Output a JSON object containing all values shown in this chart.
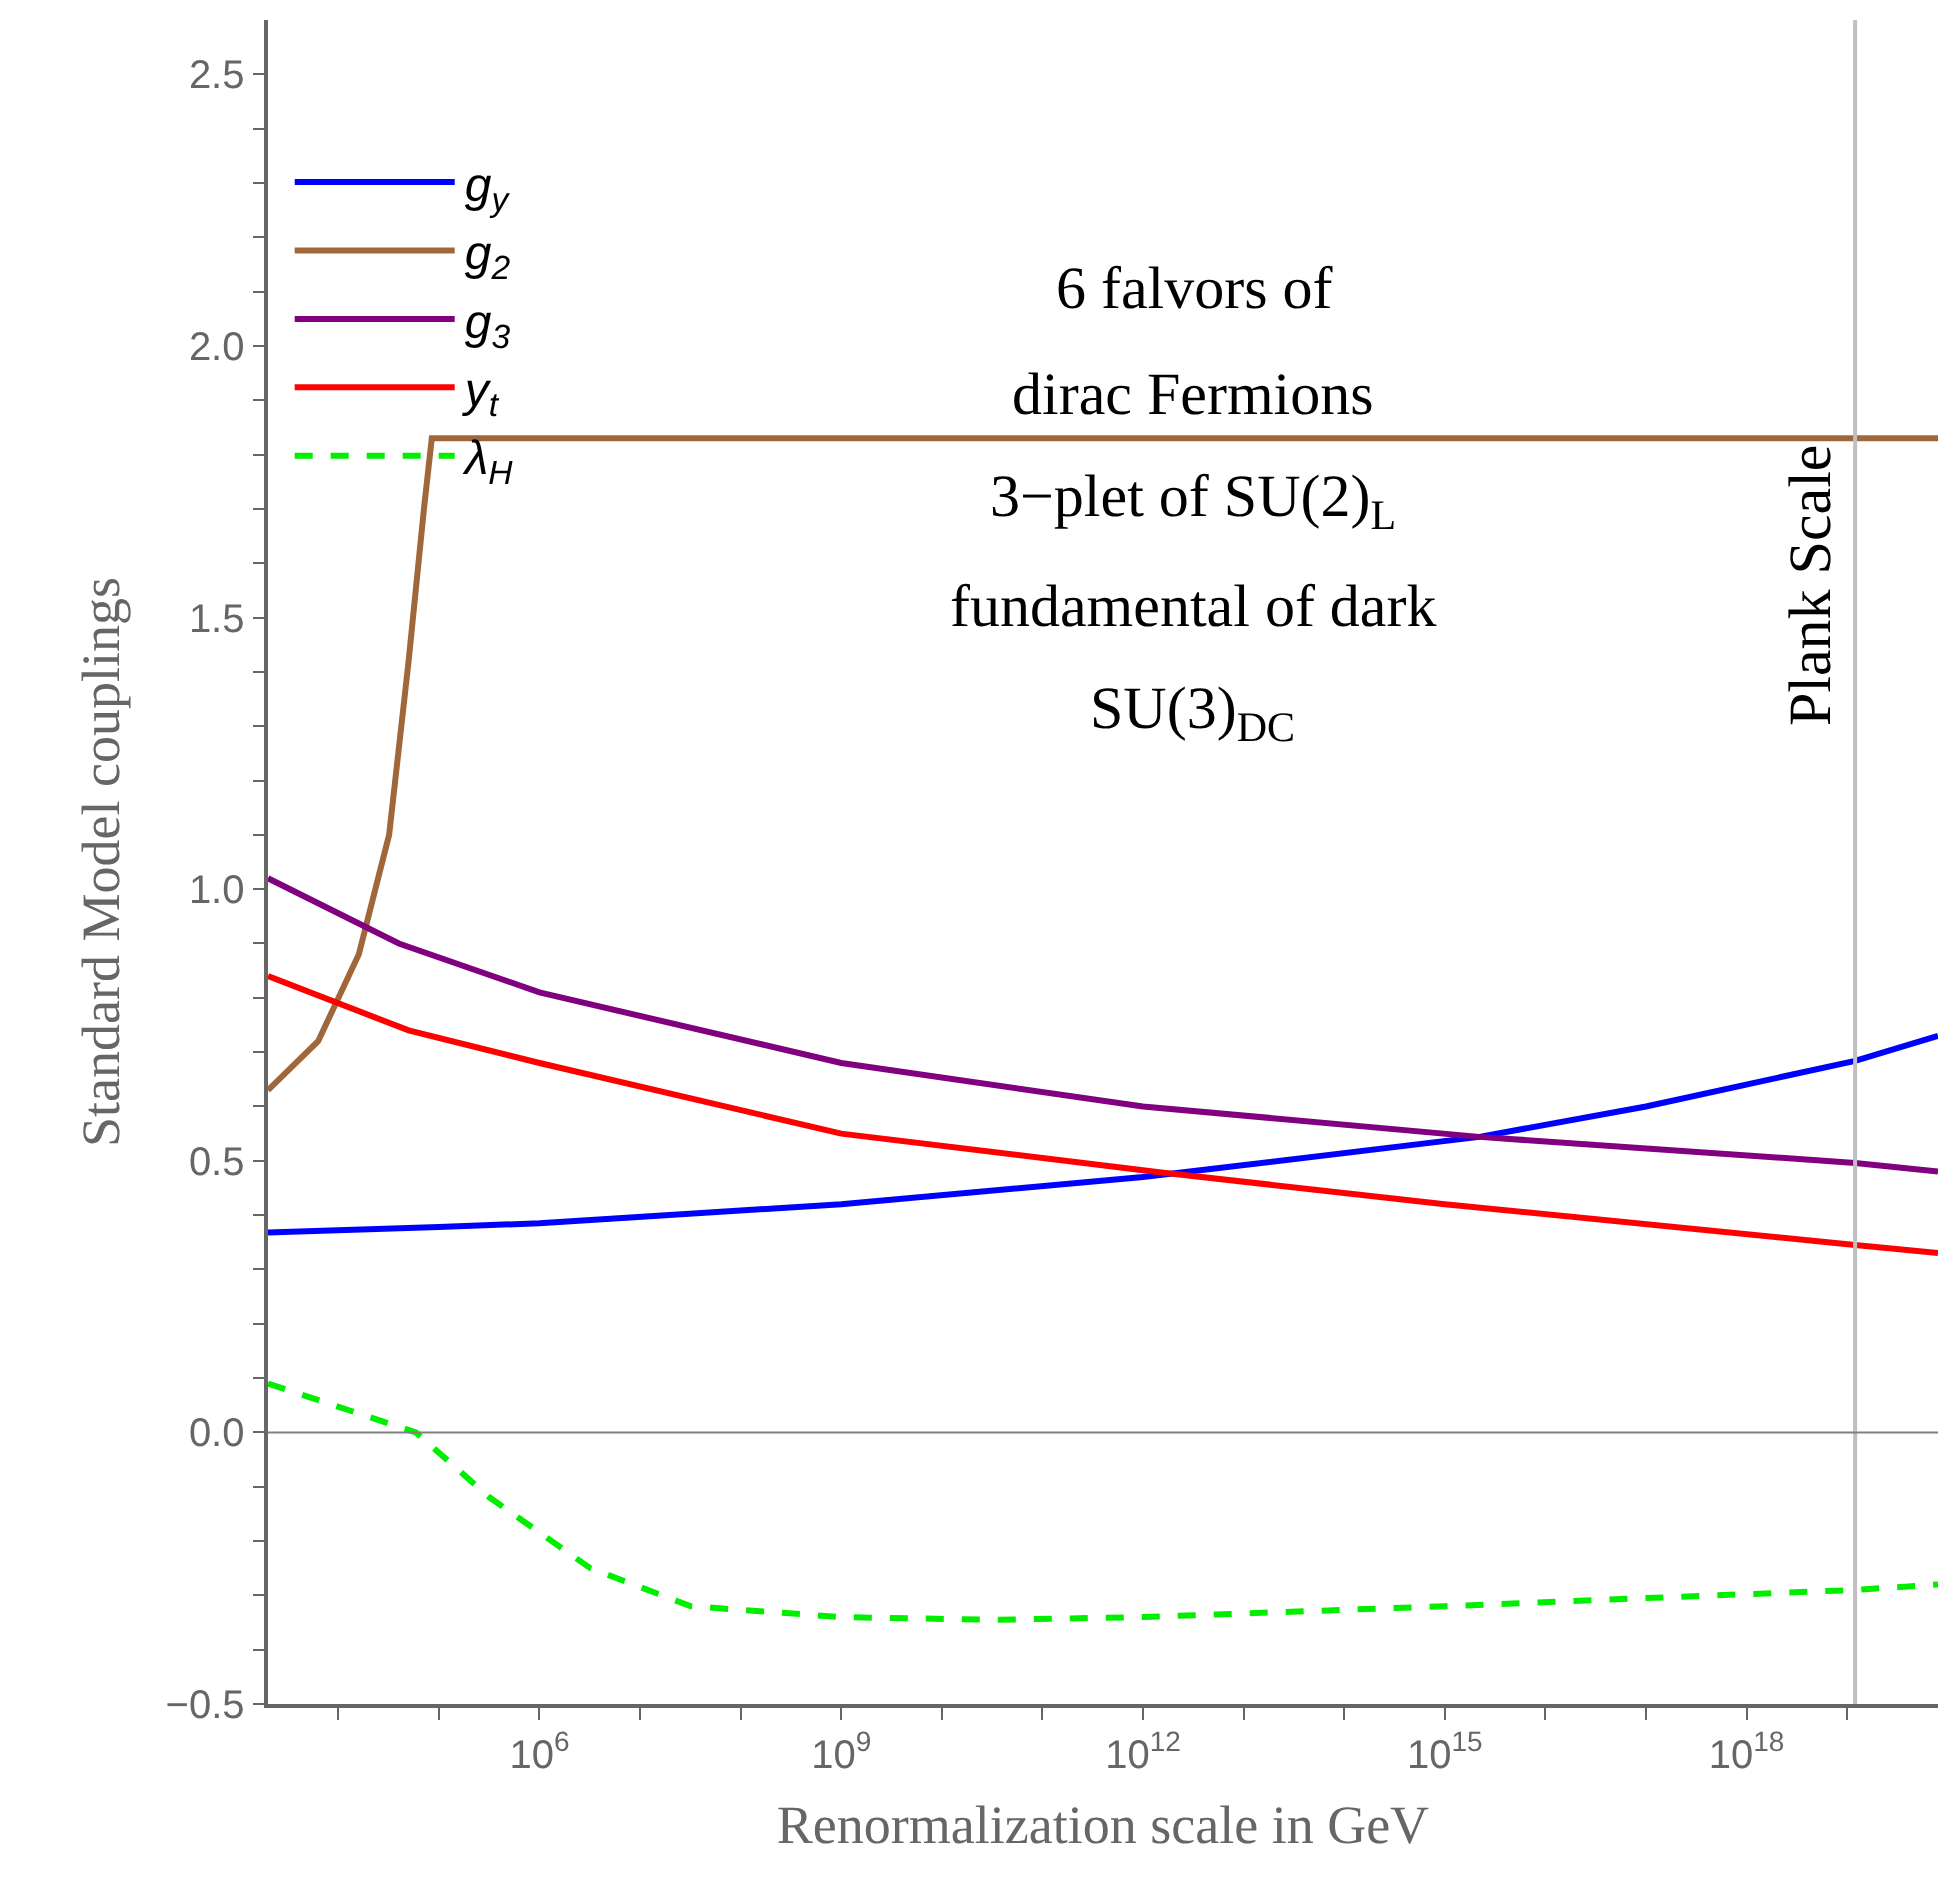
{
  "chart_data": {
    "type": "line",
    "xlabel": "Renormalization scale in GeV",
    "ylabel": "Standard Model couplings",
    "log": "x",
    "xlim": [
      2000,
      8e+19
    ],
    "xticks": [
      {
        "value": 10000.0,
        "label": null
      },
      {
        "value": 100000.0,
        "label": null
      },
      {
        "value": 1000000.0,
        "label": "10$^{6}$"
      },
      {
        "value": 10000000.0,
        "label": null
      },
      {
        "value": 100000000.0,
        "label": null
      },
      {
        "value": 1000000000.0,
        "label": "10$^{9}$"
      },
      {
        "value": 10000000000.0,
        "label": null
      },
      {
        "value": 100000000000.0,
        "label": null
      },
      {
        "value": 1000000000000.0,
        "label": "10$^{12}$"
      },
      {
        "value": 10000000000000.0,
        "label": null
      },
      {
        "value": 100000000000000.0,
        "label": null
      },
      {
        "value": 1000000000000000.0,
        "label": "10$^{15}$"
      },
      {
        "value": 1e+16,
        "label": null
      },
      {
        "value": 1e+17,
        "label": null
      },
      {
        "value": 1e+18,
        "label": "10$^{18}$"
      },
      {
        "value": 1e+19,
        "label": null
      }
    ],
    "ylim": [
      -0.5,
      2.6
    ],
    "yticks": [
      {
        "value": -0.5,
        "label": "−0.5"
      },
      {
        "value": -0.4,
        "label": null
      },
      {
        "value": -0.3,
        "label": null
      },
      {
        "value": -0.2,
        "label": null
      },
      {
        "value": -0.1,
        "label": null
      },
      {
        "value": 0,
        "label": "0.0"
      },
      {
        "value": 0.1,
        "label": null
      },
      {
        "value": 0.2,
        "label": null
      },
      {
        "value": 0.3,
        "label": null
      },
      {
        "value": 0.4,
        "label": null
      },
      0.5,
      {
        "value": 0.6,
        "label": null
      },
      {
        "value": 0.7,
        "label": null
      },
      {
        "value": 0.8,
        "label": null
      },
      {
        "value": 0.9,
        "label": null
      },
      {
        "value": 1,
        "label": "1.0"
      },
      {
        "value": 1.1,
        "label": null
      },
      {
        "value": 1.2,
        "label": null
      },
      {
        "value": 1.3,
        "label": null
      },
      {
        "value": 1.4,
        "label": null
      },
      1.5,
      {
        "value": 1.6,
        "label": null
      },
      {
        "value": 1.7,
        "label": null
      },
      {
        "value": 1.8,
        "label": null
      },
      {
        "value": 1.9,
        "label": null
      },
      {
        "value": 2,
        "label": "2.0"
      },
      {
        "value": 2.1,
        "label": null
      },
      {
        "value": 2.2,
        "label": null
      },
      {
        "value": 2.3,
        "label": null
      },
      {
        "value": 2.4,
        "label": null
      },
      2.5
    ],
    "legend": "top left",
    "line_style": "solid",
    "series": [
      {
        "name": "g$_{y}$",
        "color": "#0000ff",
        "x": [
          2000,
          100000.0,
          1000000.0,
          1000000000.0,
          1000000000000.0,
          2200000000000000.0,
          1e+17,
          1.2e+19,
          8e+19
        ],
        "values": [
          0.368,
          0.378,
          0.385,
          0.42,
          0.47,
          0.544,
          0.6,
          0.684,
          0.73
        ]
      },
      {
        "name": "g$_{2}$",
        "color": "#a0683a",
        "x": [
          2000,
          6300,
          16000,
          32000,
          50000,
          71000,
          85000,
          8e+19
        ],
        "values": [
          0.63,
          0.72,
          0.88,
          1.1,
          1.42,
          1.7,
          1.83,
          1.83
        ]
      },
      {
        "name": "g$_{3}$",
        "color": "#800080",
        "x": [
          2000,
          40000,
          1000000.0,
          1000000000.0,
          1000000000000.0,
          2200000000000000.0,
          1.2e+19,
          8e+19
        ],
        "values": [
          1.02,
          0.9,
          0.81,
          0.68,
          0.6,
          0.544,
          0.496,
          0.48
        ]
      },
      {
        "name": "y$_{t}$",
        "color": "#ff0000",
        "x": [
          2000,
          50000,
          1000000.0,
          1000000000.0,
          1600000000000.0,
          1000000000000000.0,
          1.2e+19,
          8e+19
        ],
        "values": [
          0.84,
          0.74,
          0.68,
          0.55,
          0.478,
          0.42,
          0.345,
          0.33
        ]
      },
      {
        "name": "λ$_{H}$",
        "color": "#00ee00",
        "line_style": "dashed",
        "x": [
          2000,
          59000,
          320000.0,
          3200000.0,
          32000000.0,
          1000000000.0,
          32000000000.0,
          1000000000000.0,
          1000000000000000.0,
          1e+17,
          1.2e+19,
          8e+19
        ],
        "values": [
          0.09,
          0.0,
          -0.12,
          -0.25,
          -0.32,
          -0.34,
          -0.345,
          -0.34,
          -0.32,
          -0.305,
          -0.29,
          -0.28
        ]
      }
    ],
    "annotations": [
      "6 falvors of",
      "dirac Fermions",
      "3−plet of SU(2)$_{L}$",
      "fundamental of dark",
      "SU(3)$_{DC}$"
    ],
    "ref_lines": [
      {
        "axis": "x",
        "value": 1.2e+19,
        "label": "Plank Scale",
        "color": "#c0c0c0"
      },
      {
        "axis": "y",
        "value": 0,
        "color": "#808080"
      }
    ]
  }
}
